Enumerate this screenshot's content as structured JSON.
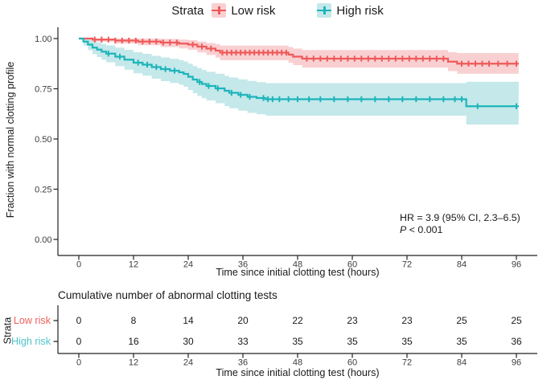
{
  "legend": {
    "title": "Strata",
    "items": [
      {
        "label": "Low risk",
        "color": "#EF5A5A",
        "fill": "#F9D0D2"
      },
      {
        "label": "High risk",
        "color": "#1CB5BA",
        "fill": "#C5E8EA"
      }
    ]
  },
  "main": {
    "ylabel": "Fraction with normal clotting profile",
    "xlabel": "Time since initial clotting test (hours)",
    "annotation": {
      "line1": "HR = 3.9 (95% CI, 2.3–6.5)",
      "p_label": "P",
      "p_rest": " < 0.001"
    }
  },
  "chart_data": {
    "type": "line",
    "subtype": "kaplan-meier-step",
    "title": "",
    "xlabel": "Time since initial clotting test (hours)",
    "ylabel": "Fraction with normal clotting profile",
    "xlim": [
      0,
      96
    ],
    "ylim": [
      0,
      1
    ],
    "x_ticks": [
      0,
      12,
      24,
      36,
      48,
      60,
      72,
      84,
      96
    ],
    "y_tick_labels": [
      "0.00",
      "0.25",
      "0.50",
      "0.75",
      "1.00"
    ],
    "grid": false,
    "legend_position": "top",
    "series": [
      {
        "name": "Low risk",
        "color": "#EF5A5A",
        "band_color": "#F9D0D2",
        "steps": [
          [
            0,
            1.0,
            1.0,
            1.0
          ],
          [
            3,
            0.995,
            0.985,
            1.0
          ],
          [
            8,
            0.99,
            0.975,
            1.0
          ],
          [
            13,
            0.985,
            0.967,
            1.0
          ],
          [
            18,
            0.98,
            0.958,
            0.998
          ],
          [
            22,
            0.975,
            0.951,
            0.995
          ],
          [
            24,
            0.97,
            0.944,
            0.992
          ],
          [
            26,
            0.96,
            0.931,
            0.985
          ],
          [
            28,
            0.95,
            0.918,
            0.978
          ],
          [
            30,
            0.94,
            0.905,
            0.972
          ],
          [
            31,
            0.93,
            0.892,
            0.965
          ],
          [
            46,
            0.92,
            0.88,
            0.958
          ],
          [
            47,
            0.91,
            0.868,
            0.95
          ],
          [
            49,
            0.9,
            0.855,
            0.943
          ],
          [
            81,
            0.885,
            0.838,
            0.932
          ],
          [
            83,
            0.875,
            0.825,
            0.928
          ]
        ],
        "censor_times": [
          3.5,
          5,
          6.5,
          8,
          9.5,
          11,
          12.5,
          14,
          15.5,
          17,
          18.5,
          20,
          21.5,
          25,
          27,
          29,
          31.5,
          32.5,
          33.5,
          34.5,
          35.5,
          36.5,
          37.5,
          38.5,
          39.5,
          40.5,
          41.5,
          42.5,
          43.5,
          44.5,
          45.5,
          50,
          51.5,
          53,
          54.5,
          56,
          57.5,
          59,
          60.5,
          62,
          63.5,
          65,
          66.5,
          68,
          69.5,
          71,
          72.5,
          74,
          75.5,
          77,
          78.5,
          80,
          84,
          85.5,
          87,
          88.5,
          90,
          92,
          94,
          96
        ]
      },
      {
        "name": "High risk",
        "color": "#1CB5BA",
        "band_color": "#C5E8EA",
        "steps": [
          [
            0,
            1.0,
            1.0,
            1.0
          ],
          [
            1,
            0.985,
            0.965,
            1.0
          ],
          [
            2,
            0.97,
            0.942,
            0.995
          ],
          [
            3,
            0.955,
            0.922,
            0.987
          ],
          [
            4,
            0.945,
            0.908,
            0.98
          ],
          [
            5,
            0.935,
            0.895,
            0.973
          ],
          [
            6,
            0.925,
            0.882,
            0.966
          ],
          [
            8,
            0.91,
            0.863,
            0.955
          ],
          [
            10,
            0.895,
            0.845,
            0.944
          ],
          [
            12,
            0.88,
            0.827,
            0.932
          ],
          [
            14,
            0.87,
            0.815,
            0.924
          ],
          [
            16,
            0.858,
            0.8,
            0.914
          ],
          [
            18,
            0.848,
            0.788,
            0.906
          ],
          [
            20,
            0.84,
            0.779,
            0.899
          ],
          [
            22,
            0.832,
            0.77,
            0.893
          ],
          [
            23,
            0.824,
            0.76,
            0.886
          ],
          [
            24,
            0.81,
            0.744,
            0.875
          ],
          [
            25,
            0.796,
            0.728,
            0.863
          ],
          [
            26,
            0.784,
            0.714,
            0.853
          ],
          [
            27,
            0.774,
            0.703,
            0.844
          ],
          [
            28,
            0.764,
            0.692,
            0.835
          ],
          [
            30,
            0.752,
            0.678,
            0.825
          ],
          [
            32,
            0.74,
            0.664,
            0.814
          ],
          [
            33,
            0.73,
            0.653,
            0.806
          ],
          [
            35,
            0.72,
            0.641,
            0.797
          ],
          [
            37,
            0.71,
            0.63,
            0.789
          ],
          [
            39,
            0.704,
            0.623,
            0.783
          ],
          [
            41,
            0.698,
            0.616,
            0.778
          ],
          [
            85,
            0.663,
            0.572,
            0.785
          ]
        ],
        "censor_times": [
          6.5,
          9,
          13,
          15,
          17,
          19,
          21,
          26.5,
          28.5,
          30.5,
          33.5,
          35.5,
          37.5,
          40.5,
          41.5,
          42.5,
          44,
          46,
          48,
          50.5,
          53,
          56,
          59,
          62,
          65,
          68,
          71,
          74,
          77,
          80,
          82.5,
          84,
          87.5,
          96
        ]
      }
    ],
    "annotation": [
      "HR = 3.9 (95% CI, 2.3–6.5)",
      "P < 0.001"
    ]
  },
  "risk_table": {
    "title": "Cumulative number of abnormal clotting tests",
    "strata_label": "Strata",
    "xlabel": "Time since initial clotting test (hours)",
    "x_ticks": [
      0,
      12,
      24,
      36,
      48,
      60,
      72,
      84,
      96
    ],
    "rows": [
      {
        "label": "Low risk",
        "color": "#F15F5C",
        "values": [
          0,
          8,
          14,
          20,
          22,
          23,
          23,
          25,
          25
        ]
      },
      {
        "label": "High risk",
        "color": "#4FC5CA",
        "values": [
          0,
          16,
          30,
          33,
          35,
          35,
          35,
          35,
          36
        ]
      }
    ]
  }
}
